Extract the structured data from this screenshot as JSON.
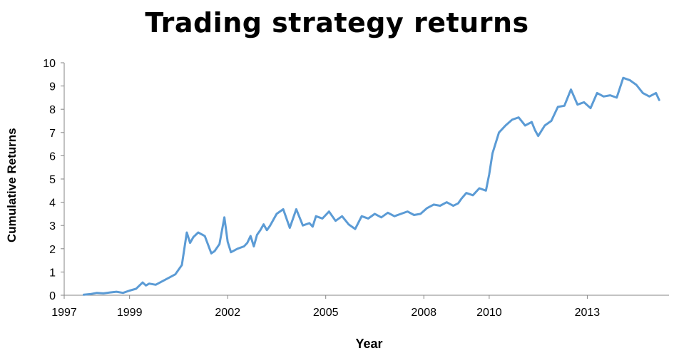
{
  "chart_data": {
    "type": "line",
    "title": "Trading strategy returns",
    "xlabel": "Year",
    "ylabel": "Cumulative Returns",
    "xlim": [
      1997,
      2015.5
    ],
    "ylim": [
      0,
      10
    ],
    "x_ticks": [
      "1997",
      "1999",
      "2002",
      "2005",
      "2008",
      "2010",
      "2013"
    ],
    "y_ticks": [
      "0",
      "1",
      "2",
      "3",
      "4",
      "5",
      "6",
      "7",
      "8",
      "9",
      "10"
    ],
    "grid": false,
    "legend": "none",
    "color": "#5b9bd5",
    "series": [
      {
        "x": [
          1997.6,
          1997.8,
          1998.0,
          1998.2,
          1998.4,
          1998.6,
          1998.8,
          1999.0,
          1999.2,
          1999.4,
          1999.5,
          1999.6,
          1999.8,
          2000.0,
          2000.2,
          2000.4,
          2000.6,
          2000.75,
          2000.85,
          2000.95,
          2001.1,
          2001.3,
          2001.5,
          2001.6,
          2001.75,
          2001.9,
          2002.0,
          2002.1,
          2002.3,
          2002.5,
          2002.6,
          2002.7,
          2002.8,
          2002.9,
          2003.0,
          2003.1,
          2003.2,
          2003.3,
          2003.5,
          2003.7,
          2003.9,
          2004.1,
          2004.3,
          2004.5,
          2004.6,
          2004.7,
          2004.9,
          2005.1,
          2005.3,
          2005.5,
          2005.7,
          2005.9,
          2006.1,
          2006.3,
          2006.5,
          2006.7,
          2006.9,
          2007.1,
          2007.3,
          2007.5,
          2007.7,
          2007.9,
          2008.1,
          2008.3,
          2008.5,
          2008.7,
          2008.9,
          2009.05,
          2009.15,
          2009.3,
          2009.5,
          2009.7,
          2009.9,
          2010.0,
          2010.1,
          2010.3,
          2010.5,
          2010.7,
          2010.9,
          2011.1,
          2011.3,
          2011.4,
          2011.5,
          2011.7,
          2011.9,
          2012.1,
          2012.3,
          2012.5,
          2012.7,
          2012.9,
          2013.1,
          2013.3,
          2013.5,
          2013.7,
          2013.9,
          2014.1,
          2014.3,
          2014.5,
          2014.7,
          2014.9,
          2015.1,
          2015.2
        ],
        "y": [
          0.02,
          0.05,
          0.1,
          0.08,
          0.12,
          0.15,
          0.1,
          0.2,
          0.28,
          0.55,
          0.42,
          0.5,
          0.45,
          0.6,
          0.75,
          0.9,
          1.3,
          2.7,
          2.25,
          2.5,
          2.7,
          2.55,
          1.8,
          1.9,
          2.2,
          3.35,
          2.3,
          1.85,
          2.0,
          2.1,
          2.25,
          2.55,
          2.1,
          2.6,
          2.8,
          3.05,
          2.8,
          3.0,
          3.5,
          3.7,
          2.9,
          3.7,
          3.0,
          3.1,
          2.95,
          3.4,
          3.3,
          3.6,
          3.2,
          3.4,
          3.05,
          2.85,
          3.4,
          3.3,
          3.5,
          3.35,
          3.55,
          3.4,
          3.5,
          3.6,
          3.45,
          3.5,
          3.75,
          3.9,
          3.85,
          4.0,
          3.85,
          3.95,
          4.15,
          4.4,
          4.3,
          4.6,
          4.5,
          5.2,
          6.1,
          7.0,
          7.3,
          7.55,
          7.65,
          7.3,
          7.45,
          7.1,
          6.85,
          7.3,
          7.5,
          8.1,
          8.15,
          8.85,
          8.2,
          8.3,
          8.05,
          8.7,
          8.55,
          8.6,
          8.5,
          9.35,
          9.25,
          9.05,
          8.7,
          8.55,
          8.7,
          8.4
        ]
      }
    ]
  }
}
